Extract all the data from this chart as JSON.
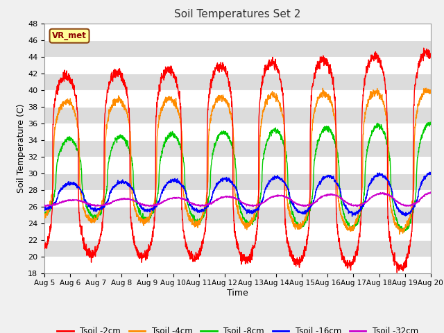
{
  "title": "Soil Temperatures Set 2",
  "xlabel": "Time",
  "ylabel": "Soil Temperature (C)",
  "ylim": [
    18,
    48
  ],
  "yticks": [
    18,
    20,
    22,
    24,
    26,
    28,
    30,
    32,
    34,
    36,
    38,
    40,
    42,
    44,
    46,
    48
  ],
  "date_labels": [
    "Aug 5",
    "Aug 6",
    "Aug 7",
    "Aug 8",
    "Aug 9",
    "Aug 10",
    "Aug 11",
    "Aug 12",
    "Aug 13",
    "Aug 14",
    "Aug 15",
    "Aug 16",
    "Aug 17",
    "Aug 18",
    "Aug 19",
    "Aug 20"
  ],
  "colors": {
    "tsoil_2cm": "#FF0000",
    "tsoil_4cm": "#FF8C00",
    "tsoil_8cm": "#00CC00",
    "tsoil_16cm": "#0000FF",
    "tsoil_32cm": "#CC00CC"
  },
  "legend_labels": [
    "Tsoil -2cm",
    "Tsoil -4cm",
    "Tsoil -8cm",
    "Tsoil -16cm",
    "Tsoil -32cm"
  ],
  "vr_met_label": "VR_met",
  "band_colors": [
    "#FFFFFF",
    "#DCDCDC"
  ],
  "fig_bg": "#F0F0F0"
}
